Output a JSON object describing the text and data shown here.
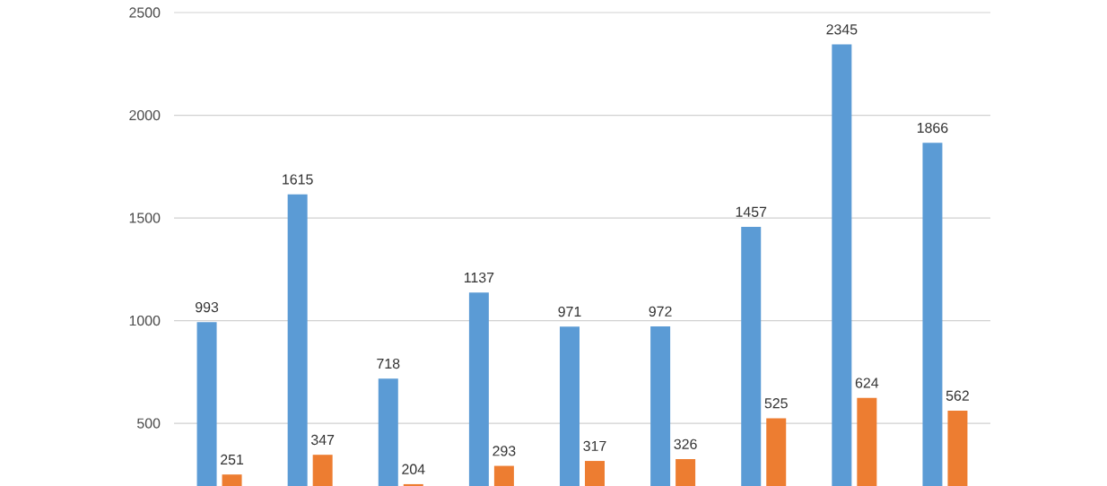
{
  "chart_data": {
    "type": "bar",
    "categories": [
      null,
      null,
      null,
      null,
      null,
      null,
      null,
      null,
      null
    ],
    "series": [
      {
        "color": "#5b9bd5",
        "values": [
          993,
          1615,
          718,
          1137,
          971,
          972,
          1457,
          2345,
          1866
        ]
      },
      {
        "color": "#ed7d31",
        "values": [
          251,
          347,
          204,
          293,
          317,
          326,
          525,
          624,
          562
        ]
      }
    ],
    "ylim": [
      195,
      2500
    ],
    "yticks": [
      500,
      1000,
      1500,
      2000,
      2500
    ],
    "grid": "y",
    "data_labels": true
  }
}
